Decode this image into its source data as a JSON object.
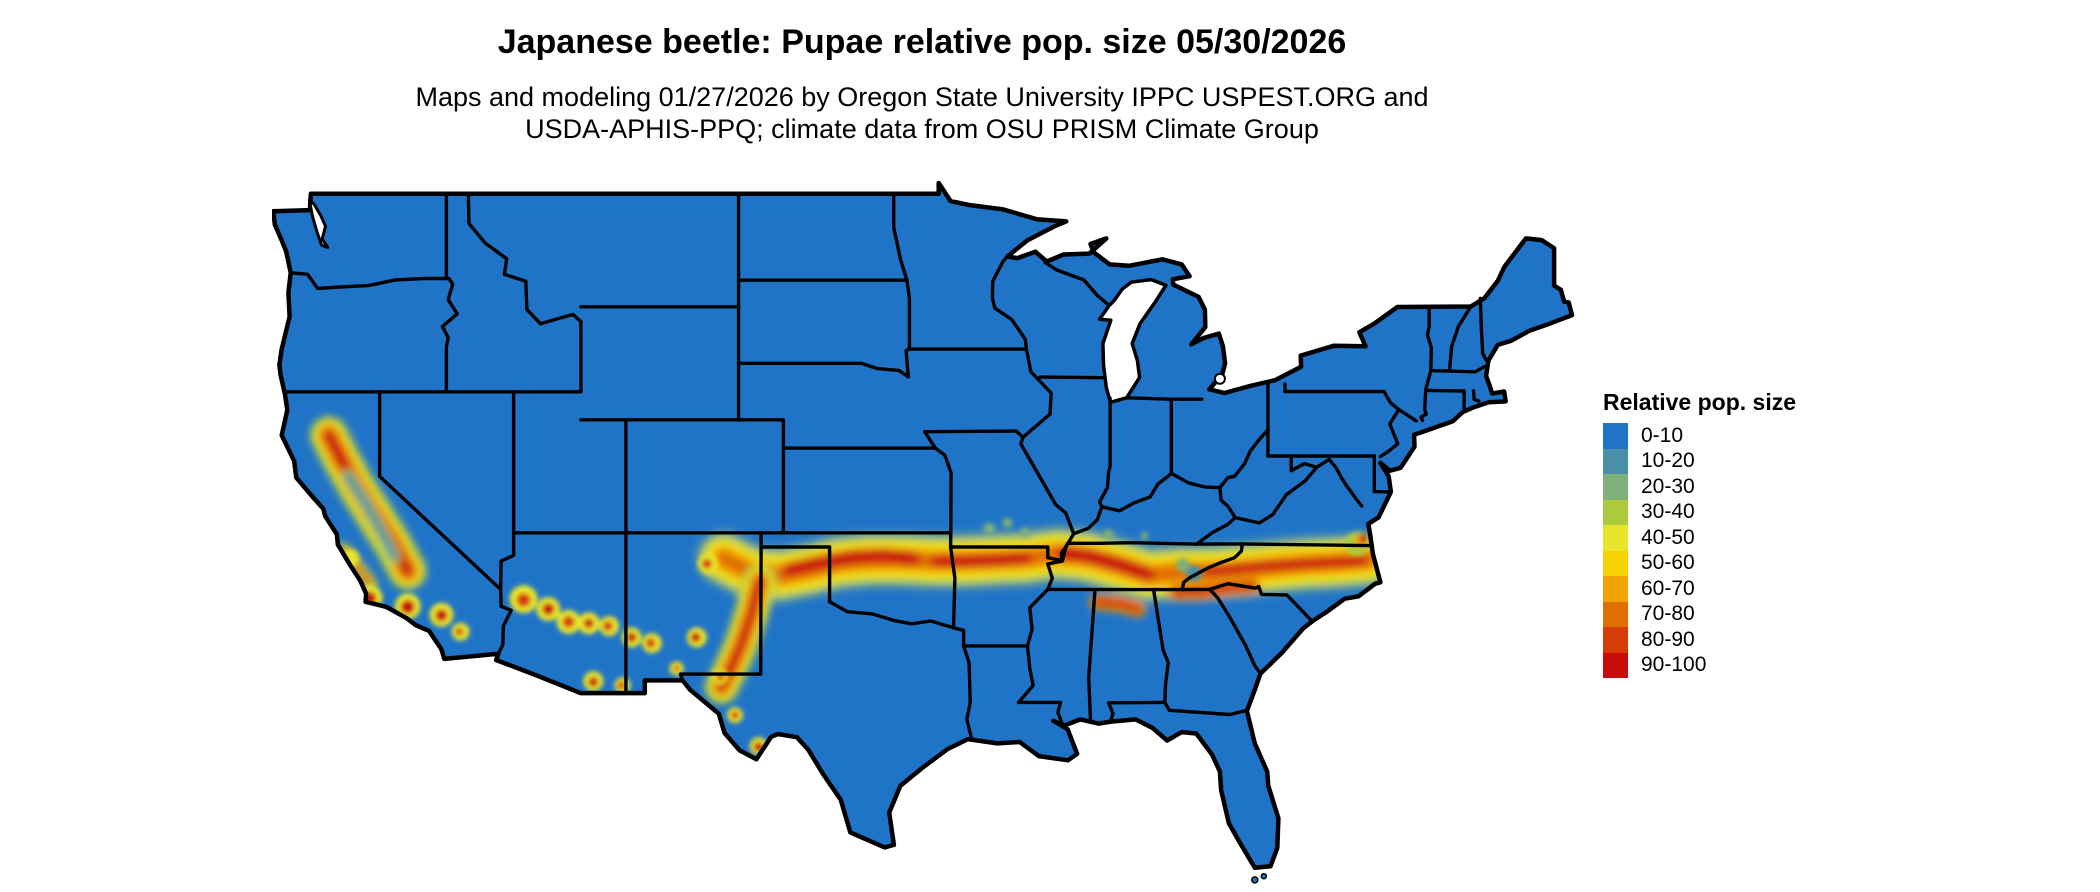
{
  "header": {
    "title": "Japanese beetle: Pupae relative pop. size 05/30/2026",
    "subtitle_line1": "Maps and modeling 01/27/2026 by Oregon State University IPPC USPEST.ORG and",
    "subtitle_line2": "USDA-APHIS-PPQ; climate data from OSU PRISM Climate Group"
  },
  "legend": {
    "title": "Relative pop. size",
    "items": [
      {
        "label": "0-10",
        "color": "#2074c8"
      },
      {
        "label": "10-20",
        "color": "#4a8fa8"
      },
      {
        "label": "20-30",
        "color": "#7eb07a"
      },
      {
        "label": "30-40",
        "color": "#aec93d"
      },
      {
        "label": "40-50",
        "color": "#e7e52c"
      },
      {
        "label": "50-60",
        "color": "#f8d200"
      },
      {
        "label": "60-70",
        "color": "#f0a500"
      },
      {
        "label": "70-80",
        "color": "#e16e00"
      },
      {
        "label": "80-90",
        "color": "#d63b0a"
      },
      {
        "label": "90-100",
        "color": "#c80b0b"
      }
    ]
  },
  "map": {
    "region": "Contiguous United States",
    "base_fill_label": "0-10",
    "border_color": "#000000",
    "water_color": "#ffffff"
  }
}
